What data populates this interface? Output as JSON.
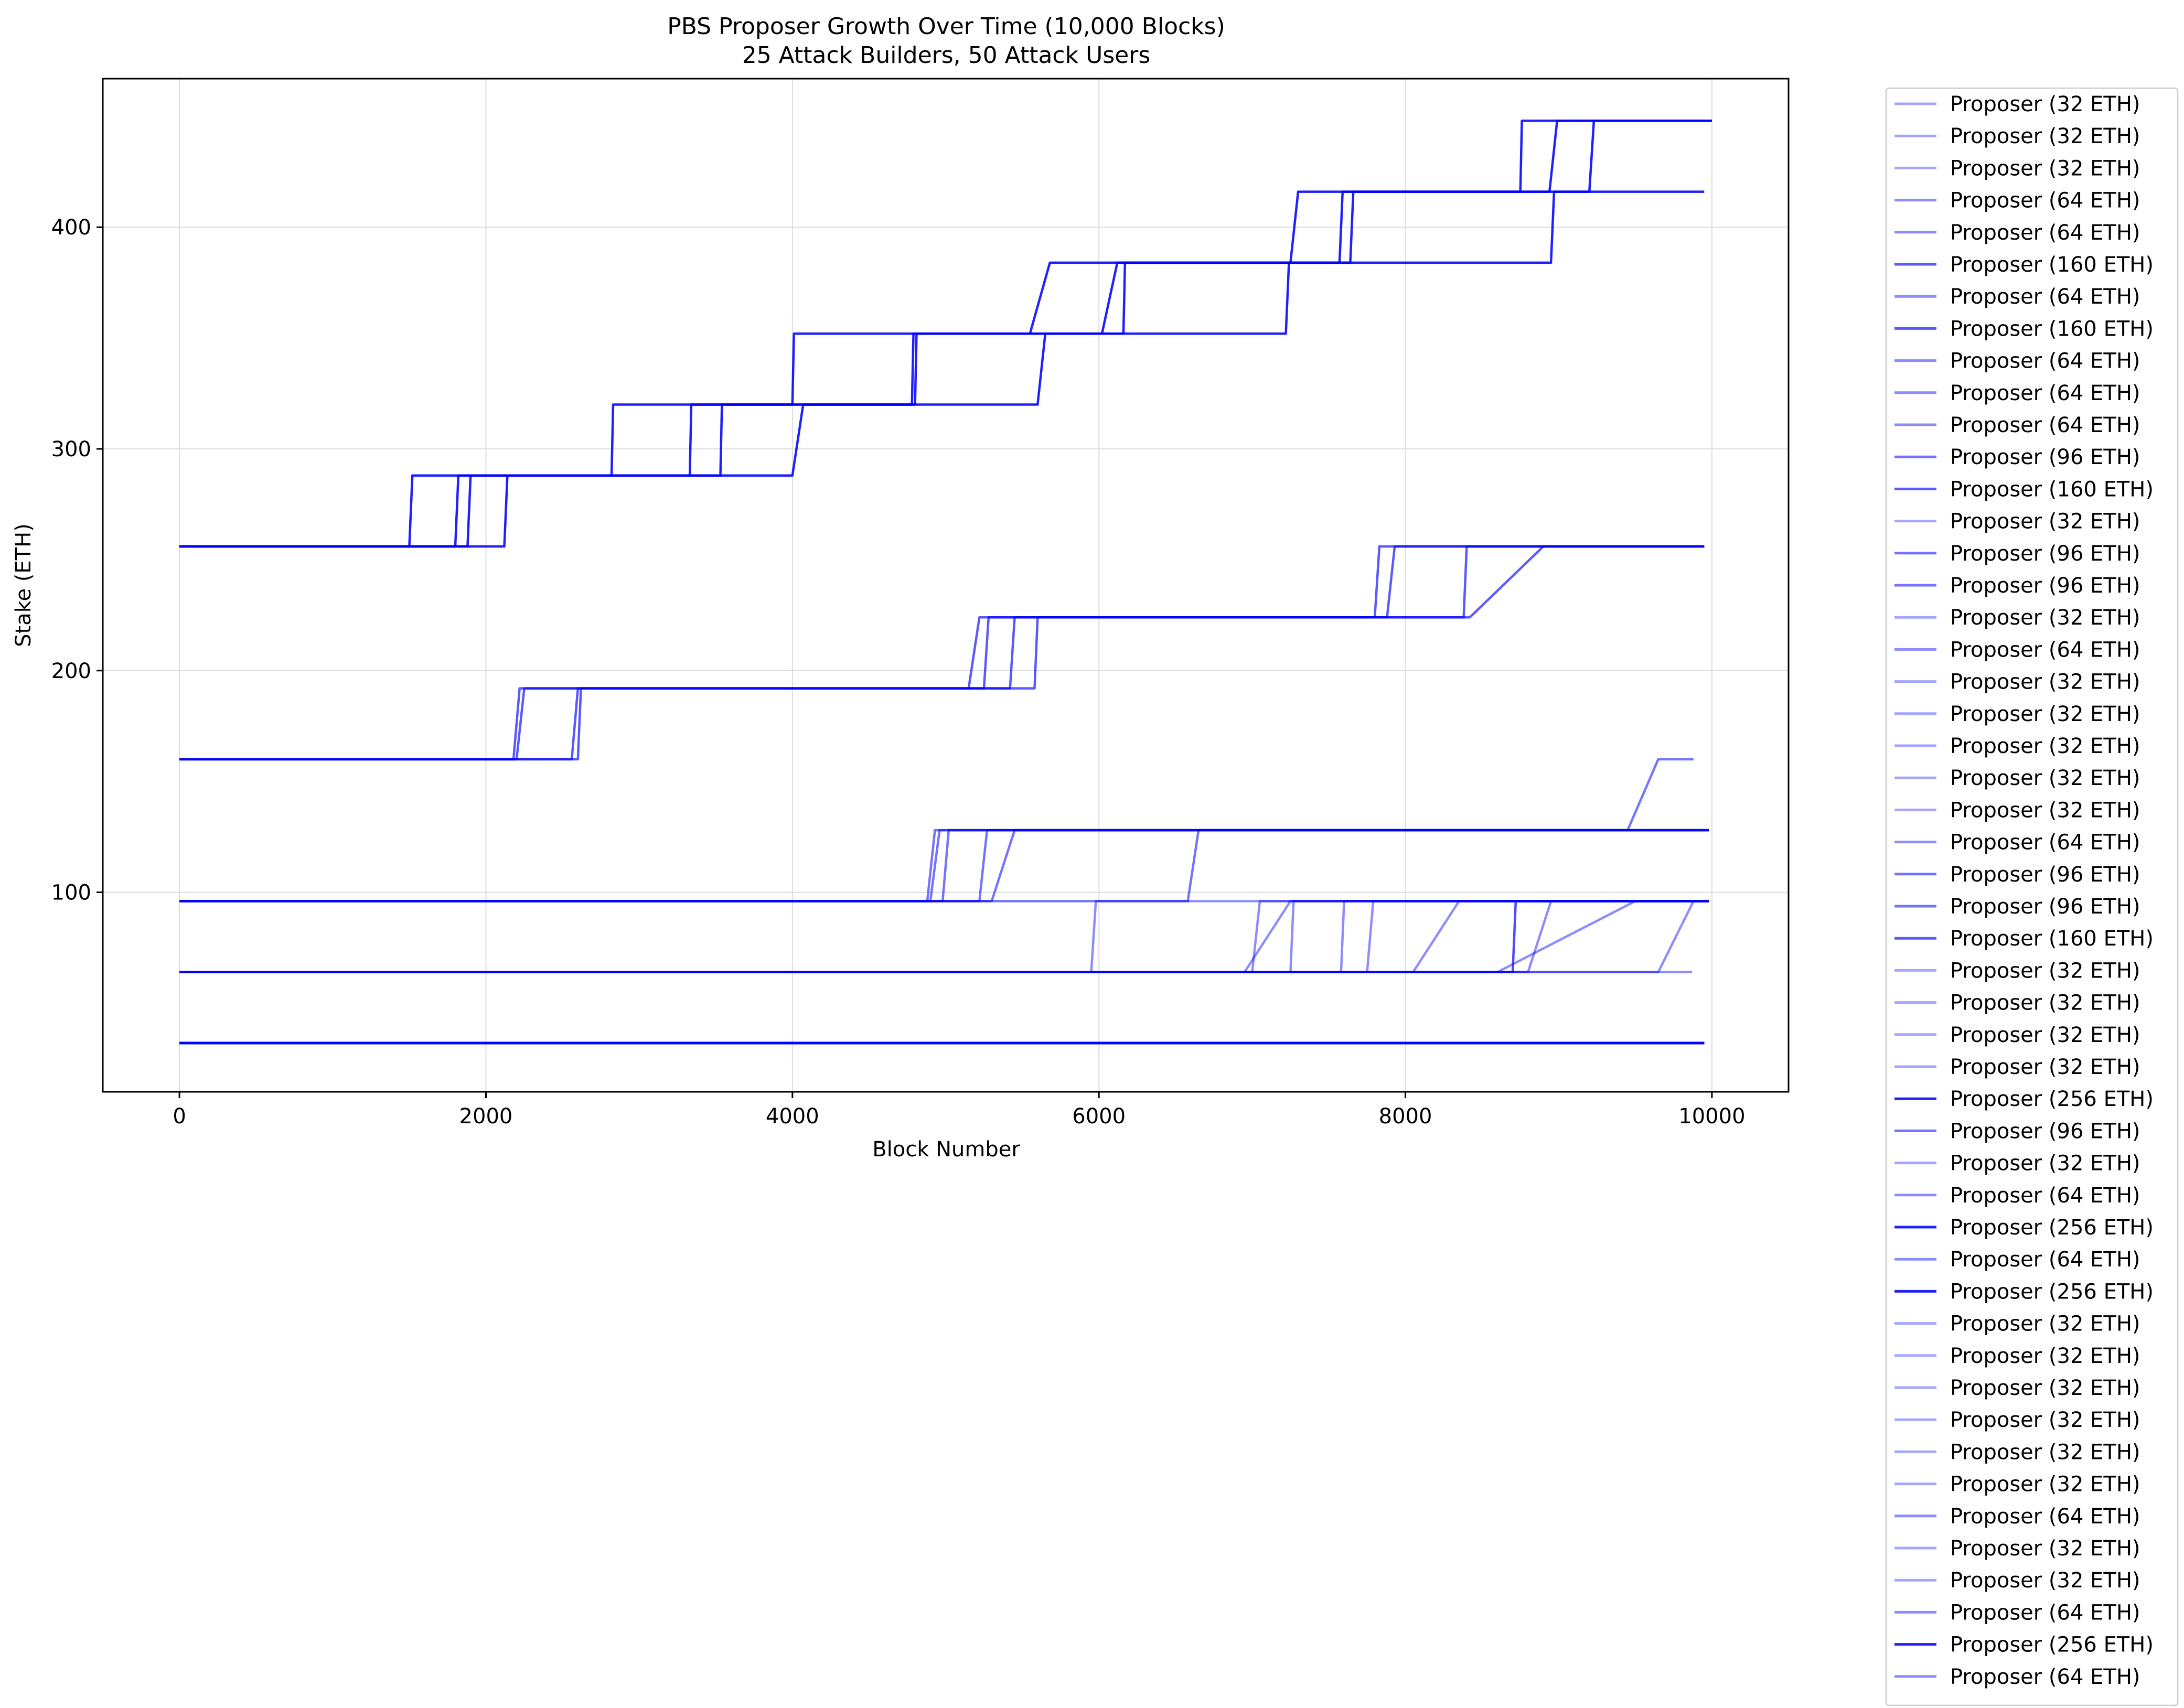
{
  "chart_data": {
    "type": "line",
    "title": "PBS Proposer Growth Over Time (10,000 Blocks)",
    "subtitle": "25 Attack Builders, 50 Attack Users",
    "xlabel": "Block Number",
    "ylabel": "Stake (ETH)",
    "xlim": [
      -500,
      10500
    ],
    "ylim": [
      10,
      467
    ],
    "xticks": [
      0,
      2000,
      4000,
      6000,
      8000,
      10000
    ],
    "yticks": [
      100,
      200,
      300,
      400
    ],
    "grid": true,
    "legend_position": "outside-right",
    "line_color": "#0000ff",
    "series": [
      {
        "name": "Proposer (32 ETH)",
        "points": [
          [
            0,
            32
          ],
          [
            9950,
            32
          ]
        ]
      },
      {
        "name": "Proposer (32 ETH)",
        "points": [
          [
            0,
            32
          ],
          [
            9950,
            32
          ]
        ]
      },
      {
        "name": "Proposer (32 ETH)",
        "points": [
          [
            0,
            32
          ],
          [
            9950,
            32
          ]
        ]
      },
      {
        "name": "Proposer (64 ETH)",
        "points": [
          [
            0,
            64
          ],
          [
            6950,
            64
          ],
          [
            7250,
            96
          ],
          [
            9980,
            96
          ]
        ]
      },
      {
        "name": "Proposer (64 ETH)",
        "points": [
          [
            0,
            64
          ],
          [
            8600,
            64
          ],
          [
            9500,
            96
          ],
          [
            9980,
            96
          ]
        ]
      },
      {
        "name": "Proposer (160 ETH)",
        "points": [
          [
            0,
            160
          ],
          [
            2180,
            160
          ],
          [
            2220,
            192
          ],
          [
            5150,
            192
          ],
          [
            5220,
            224
          ],
          [
            7800,
            224
          ],
          [
            7830,
            256
          ],
          [
            9950,
            256
          ]
        ]
      },
      {
        "name": "Proposer (64 ETH)",
        "points": [
          [
            0,
            64
          ],
          [
            7000,
            64
          ],
          [
            7050,
            96
          ],
          [
            9980,
            96
          ]
        ]
      },
      {
        "name": "Proposer (160 ETH)",
        "points": [
          [
            0,
            160
          ],
          [
            2200,
            160
          ],
          [
            2250,
            192
          ],
          [
            5250,
            192
          ],
          [
            5280,
            224
          ],
          [
            7880,
            224
          ],
          [
            7930,
            256
          ],
          [
            9950,
            256
          ]
        ]
      },
      {
        "name": "Proposer (64 ETH)",
        "points": [
          [
            0,
            64
          ],
          [
            7250,
            64
          ],
          [
            7270,
            96
          ],
          [
            9980,
            96
          ]
        ]
      },
      {
        "name": "Proposer (64 ETH)",
        "points": [
          [
            0,
            64
          ],
          [
            7580,
            64
          ],
          [
            7600,
            96
          ],
          [
            9980,
            96
          ]
        ]
      },
      {
        "name": "Proposer (64 ETH)",
        "points": [
          [
            0,
            64
          ],
          [
            7750,
            64
          ],
          [
            7790,
            96
          ],
          [
            9980,
            96
          ]
        ]
      },
      {
        "name": "Proposer (96 ETH)",
        "points": [
          [
            0,
            96
          ],
          [
            4900,
            96
          ],
          [
            4960,
            128
          ],
          [
            9980,
            128
          ]
        ]
      },
      {
        "name": "Proposer (160 ETH)",
        "points": [
          [
            0,
            160
          ],
          [
            2560,
            160
          ],
          [
            2600,
            192
          ],
          [
            5420,
            192
          ],
          [
            5450,
            224
          ],
          [
            8380,
            224
          ],
          [
            8400,
            256
          ],
          [
            9950,
            256
          ]
        ]
      },
      {
        "name": "Proposer (32 ETH)",
        "points": [
          [
            0,
            32
          ],
          [
            9950,
            32
          ]
        ]
      },
      {
        "name": "Proposer (96 ETH)",
        "points": [
          [
            0,
            96
          ],
          [
            4980,
            96
          ],
          [
            5020,
            128
          ],
          [
            9980,
            128
          ]
        ]
      },
      {
        "name": "Proposer (96 ETH)",
        "points": [
          [
            0,
            96
          ],
          [
            5220,
            96
          ],
          [
            5270,
            128
          ],
          [
            9980,
            128
          ]
        ]
      },
      {
        "name": "Proposer (32 ETH)",
        "points": [
          [
            0,
            32
          ],
          [
            9950,
            32
          ]
        ]
      },
      {
        "name": "Proposer (64 ETH)",
        "points": [
          [
            0,
            64
          ],
          [
            5950,
            64
          ],
          [
            5980,
            96
          ],
          [
            9980,
            96
          ]
        ]
      },
      {
        "name": "Proposer (32 ETH)",
        "points": [
          [
            0,
            32
          ],
          [
            9950,
            32
          ]
        ]
      },
      {
        "name": "Proposer (32 ETH)",
        "points": [
          [
            0,
            32
          ],
          [
            9950,
            32
          ]
        ]
      },
      {
        "name": "Proposer (32 ETH)",
        "points": [
          [
            0,
            32
          ],
          [
            9950,
            32
          ]
        ]
      },
      {
        "name": "Proposer (32 ETH)",
        "points": [
          [
            0,
            32
          ],
          [
            9950,
            32
          ]
        ]
      },
      {
        "name": "Proposer (32 ETH)",
        "points": [
          [
            0,
            32
          ],
          [
            9950,
            32
          ]
        ]
      },
      {
        "name": "Proposer (64 ETH)",
        "points": [
          [
            0,
            64
          ],
          [
            8050,
            64
          ],
          [
            8350,
            96
          ],
          [
            9980,
            96
          ]
        ]
      },
      {
        "name": "Proposer (96 ETH)",
        "points": [
          [
            0,
            96
          ],
          [
            5300,
            96
          ],
          [
            5450,
            128
          ],
          [
            9980,
            128
          ]
        ]
      },
      {
        "name": "Proposer (96 ETH)",
        "points": [
          [
            0,
            96
          ],
          [
            6580,
            96
          ],
          [
            6650,
            128
          ],
          [
            9450,
            128
          ],
          [
            9650,
            160
          ],
          [
            9880,
            160
          ]
        ]
      },
      {
        "name": "Proposer (160 ETH)",
        "points": [
          [
            0,
            160
          ],
          [
            2600,
            160
          ],
          [
            2620,
            192
          ],
          [
            5580,
            192
          ],
          [
            5600,
            224
          ],
          [
            8420,
            224
          ],
          [
            8900,
            256
          ],
          [
            9950,
            256
          ]
        ]
      },
      {
        "name": "Proposer (32 ETH)",
        "points": [
          [
            0,
            32
          ],
          [
            9950,
            32
          ]
        ]
      },
      {
        "name": "Proposer (32 ETH)",
        "points": [
          [
            0,
            32
          ],
          [
            9950,
            32
          ]
        ]
      },
      {
        "name": "Proposer (32 ETH)",
        "points": [
          [
            0,
            32
          ],
          [
            9950,
            32
          ]
        ]
      },
      {
        "name": "Proposer (32 ETH)",
        "points": [
          [
            0,
            32
          ],
          [
            9950,
            32
          ]
        ]
      },
      {
        "name": "Proposer (256 ETH)",
        "points": [
          [
            0,
            256
          ],
          [
            1500,
            256
          ],
          [
            1520,
            288
          ],
          [
            2820,
            288
          ],
          [
            2830,
            320
          ],
          [
            4000,
            320
          ],
          [
            4010,
            352
          ],
          [
            5550,
            352
          ],
          [
            5680,
            384
          ],
          [
            7250,
            384
          ],
          [
            7300,
            416
          ],
          [
            8750,
            416
          ],
          [
            8760,
            448
          ],
          [
            10000,
            448
          ]
        ]
      },
      {
        "name": "Proposer (96 ETH)",
        "points": [
          [
            0,
            96
          ],
          [
            4880,
            96
          ],
          [
            4930,
            128
          ],
          [
            9980,
            128
          ]
        ]
      },
      {
        "name": "Proposer (32 ETH)",
        "points": [
          [
            0,
            32
          ],
          [
            9950,
            32
          ]
        ]
      },
      {
        "name": "Proposer (64 ETH)",
        "points": [
          [
            0,
            64
          ],
          [
            8700,
            64
          ],
          [
            8720,
            96
          ],
          [
            9980,
            96
          ]
        ]
      },
      {
        "name": "Proposer (256 ETH)",
        "points": [
          [
            0,
            256
          ],
          [
            1800,
            256
          ],
          [
            1820,
            288
          ],
          [
            3330,
            288
          ],
          [
            3340,
            320
          ],
          [
            4780,
            320
          ],
          [
            4790,
            352
          ],
          [
            6020,
            352
          ],
          [
            6120,
            384
          ],
          [
            7570,
            384
          ],
          [
            7590,
            416
          ],
          [
            8940,
            416
          ],
          [
            8990,
            448
          ],
          [
            10000,
            448
          ]
        ]
      },
      {
        "name": "Proposer (64 ETH)",
        "points": [
          [
            0,
            64
          ],
          [
            8800,
            64
          ],
          [
            8950,
            96
          ],
          [
            9980,
            96
          ]
        ]
      },
      {
        "name": "Proposer (256 ETH)",
        "points": [
          [
            0,
            256
          ],
          [
            1880,
            256
          ],
          [
            1900,
            288
          ],
          [
            3530,
            288
          ],
          [
            3540,
            320
          ],
          [
            4800,
            320
          ],
          [
            4810,
            352
          ],
          [
            6160,
            352
          ],
          [
            6170,
            384
          ],
          [
            7640,
            384
          ],
          [
            7660,
            416
          ],
          [
            9200,
            416
          ],
          [
            9230,
            448
          ],
          [
            10000,
            448
          ]
        ]
      },
      {
        "name": "Proposer (32 ETH)",
        "points": [
          [
            0,
            32
          ],
          [
            9950,
            32
          ]
        ]
      },
      {
        "name": "Proposer (32 ETH)",
        "points": [
          [
            0,
            32
          ],
          [
            9950,
            32
          ]
        ]
      },
      {
        "name": "Proposer (32 ETH)",
        "points": [
          [
            0,
            32
          ],
          [
            9950,
            32
          ]
        ]
      },
      {
        "name": "Proposer (32 ETH)",
        "points": [
          [
            0,
            32
          ],
          [
            9950,
            32
          ]
        ]
      },
      {
        "name": "Proposer (32 ETH)",
        "points": [
          [
            0,
            32
          ],
          [
            9950,
            32
          ]
        ]
      },
      {
        "name": "Proposer (32 ETH)",
        "points": [
          [
            0,
            32
          ],
          [
            9950,
            32
          ]
        ]
      },
      {
        "name": "Proposer (64 ETH)",
        "points": [
          [
            0,
            64
          ],
          [
            9650,
            64
          ],
          [
            9880,
            96
          ],
          [
            9980,
            96
          ]
        ]
      },
      {
        "name": "Proposer (32 ETH)",
        "points": [
          [
            0,
            32
          ],
          [
            9950,
            32
          ]
        ]
      },
      {
        "name": "Proposer (32 ETH)",
        "points": [
          [
            0,
            32
          ],
          [
            9950,
            32
          ]
        ]
      },
      {
        "name": "Proposer (64 ETH)",
        "points": [
          [
            0,
            64
          ],
          [
            9650,
            64
          ],
          [
            9870,
            64
          ]
        ]
      },
      {
        "name": "Proposer (256 ETH)",
        "points": [
          [
            0,
            256
          ],
          [
            2120,
            256
          ],
          [
            2140,
            288
          ],
          [
            4000,
            288
          ],
          [
            4070,
            320
          ],
          [
            5600,
            320
          ],
          [
            5650,
            352
          ],
          [
            7220,
            352
          ],
          [
            7240,
            384
          ],
          [
            8950,
            384
          ],
          [
            8970,
            416
          ],
          [
            9950,
            416
          ]
        ]
      },
      {
        "name": "Proposer (64 ETH)",
        "points": [
          [
            0,
            64
          ],
          [
            8700,
            64
          ],
          [
            8720,
            96
          ],
          [
            9980,
            96
          ]
        ]
      }
    ]
  }
}
